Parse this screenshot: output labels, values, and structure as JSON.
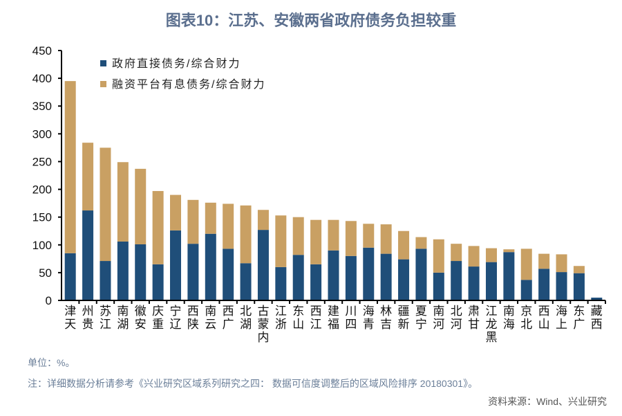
{
  "chart_data": {
    "type": "bar",
    "stacked": true,
    "title": "图表10：江苏、安徽两省政府债务负担较重",
    "xlabel": "",
    "ylabel": "",
    "ylim": [
      0,
      450
    ],
    "yticks": [
      0,
      50,
      100,
      150,
      200,
      250,
      300,
      350,
      400,
      450
    ],
    "legend_position": "top-left",
    "categories": [
      "天津",
      "贵州",
      "江苏",
      "湖南",
      "安徽",
      "重庆",
      "辽宁",
      "陕西",
      "云南",
      "广西",
      "湖北",
      "内蒙古",
      "浙江",
      "山东",
      "江西",
      "福建",
      "四川",
      "青海",
      "吉林",
      "新疆",
      "宁夏",
      "河南",
      "河北",
      "甘肃",
      "黑龙江",
      "海南",
      "北京",
      "山西",
      "上海",
      "广东",
      "西藏"
    ],
    "series": [
      {
        "name": "政府直接债务/综合财力",
        "color": "#1f4e79",
        "values": [
          85,
          162,
          71,
          106,
          101,
          65,
          126,
          102,
          120,
          93,
          67,
          127,
          60,
          82,
          65,
          90,
          80,
          95,
          84,
          74,
          93,
          50,
          71,
          61,
          69,
          87,
          37,
          57,
          51,
          49,
          5
        ]
      },
      {
        "name": "融资平台有息债务/综合财力",
        "color": "#c9a063",
        "values": [
          310,
          122,
          204,
          143,
          136,
          132,
          64,
          79,
          56,
          81,
          104,
          36,
          93,
          68,
          80,
          55,
          63,
          43,
          53,
          51,
          21,
          60,
          31,
          37,
          25,
          5,
          56,
          27,
          32,
          13,
          0
        ]
      }
    ]
  },
  "footer": {
    "unit": "单位：%。",
    "note": "注：详细数据分析请参考《兴业研究区域系列研究之四： 数据可信度调整后的区域风险排序 20180301》。",
    "source": "资料来源：Wind、兴业研究"
  }
}
